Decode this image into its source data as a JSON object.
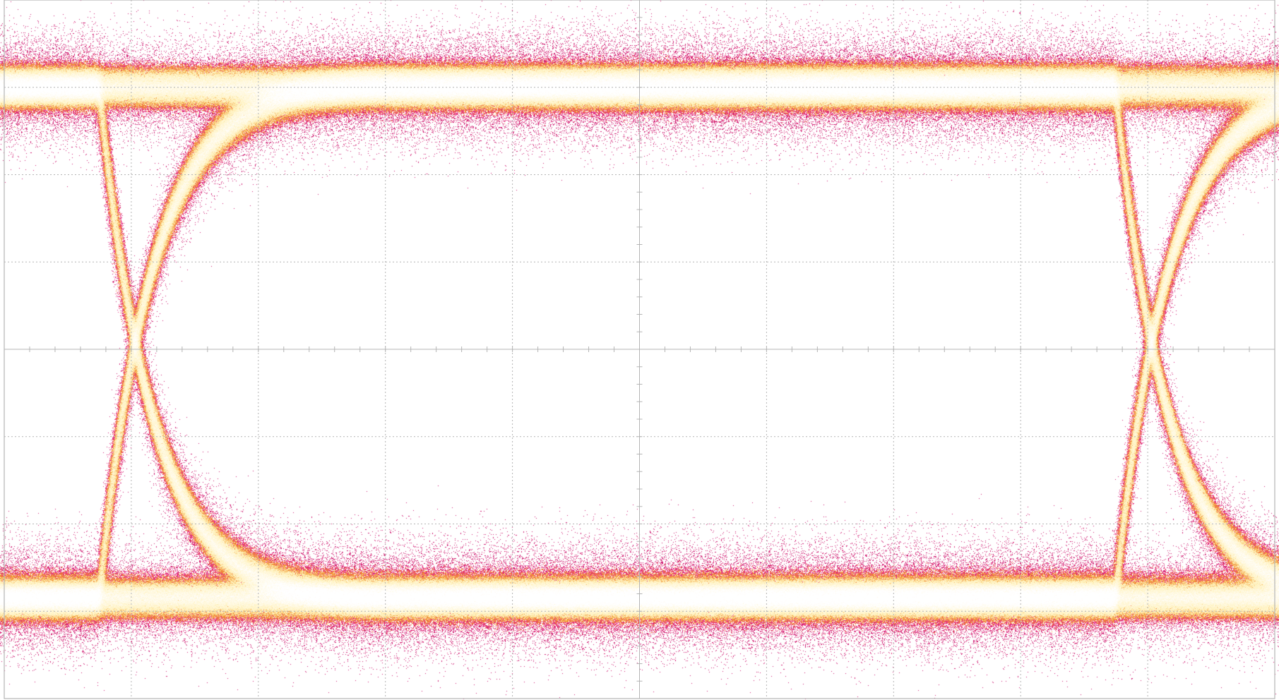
{
  "chart_data": {
    "type": "eye-diagram",
    "title": "",
    "xlabel": "",
    "ylabel": "",
    "grid": true,
    "grid_divisions": {
      "x": 10,
      "y": 8
    },
    "minor_ticks_per_division": 5,
    "xlim": [
      0,
      10
    ],
    "ylim": [
      0,
      8
    ],
    "levels": {
      "one_level_div": 7.0,
      "zero_level_div": 1.15,
      "crossing_level_div": 3.75
    },
    "crossings_div": [
      1.05,
      9.05
    ],
    "unit_interval_div": 8.0,
    "noise_spread_div": 0.35,
    "colors": {
      "background": "#ffffff",
      "grid": "#b4b4b4",
      "outer_density": "#3cb93c",
      "low_density": "#1e1ec8",
      "mid_density": "#c8186e",
      "mid_high_density": "#f03c8c",
      "high_density": "#f08c1e",
      "peak_density": "#fff0b4",
      "core": "#ffffff"
    }
  }
}
